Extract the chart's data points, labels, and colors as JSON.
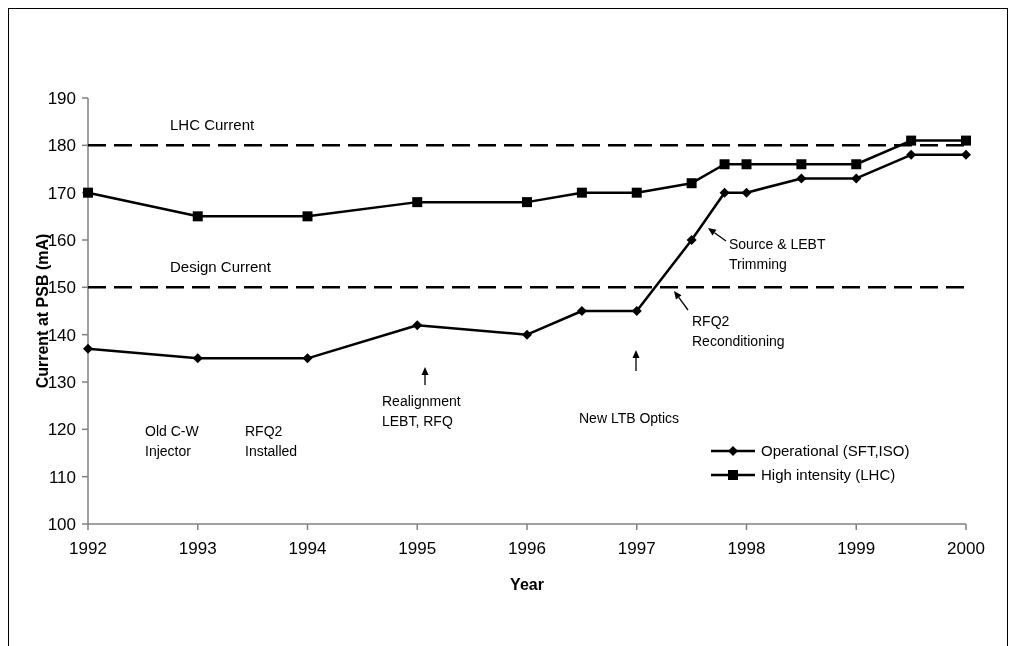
{
  "chart_data": {
    "type": "line",
    "xlabel": "Year",
    "ylabel": "Current at PSB (mA)",
    "xlim": [
      1992,
      2000
    ],
    "xticks": [
      1992,
      1993,
      1994,
      1995,
      1996,
      1997,
      1998,
      1999,
      2000
    ],
    "ylim": [
      100,
      190
    ],
    "yticks": [
      100,
      110,
      120,
      130,
      140,
      150,
      160,
      170,
      180,
      190
    ],
    "grid": false,
    "legend": "bottom right",
    "line_style": "solid",
    "series": [
      {
        "name": "Operational (SFT,ISO)",
        "color": "#000000",
        "marker": "diamond",
        "x": [
          1992,
          1993,
          1994,
          1995,
          1996,
          1996.5,
          1997,
          1997.5,
          1997.8,
          1998,
          1998.5,
          1999,
          1999.5,
          2000
        ],
        "values": [
          137,
          135,
          135,
          142,
          140,
          145,
          145,
          160,
          170,
          170,
          173,
          173,
          178,
          178
        ]
      },
      {
        "name": "High intensity (LHC)",
        "color": "#000000",
        "marker": "square",
        "x": [
          1992,
          1993,
          1994,
          1995,
          1996,
          1996.5,
          1997,
          1997.5,
          1997.8,
          1998,
          1998.5,
          1999,
          1999.5,
          2000
        ],
        "values": [
          170,
          165,
          165,
          168,
          168,
          170,
          170,
          172,
          176,
          176,
          176,
          176,
          181,
          181
        ]
      }
    ],
    "ref_lines": [
      {
        "axis": "y",
        "value": 180,
        "label": "LHC Current",
        "color": "#000000",
        "line_style": "dashed"
      },
      {
        "axis": "y",
        "value": 150,
        "label": "Design Current",
        "color": "#000000",
        "line_style": "dashed"
      }
    ],
    "annotations": [
      "Old C-W Injector",
      "RFQ2 Installed",
      "Realignment LEBT, RFQ",
      "New LTB Optics",
      "Source & LEBT Trimming",
      "RFQ2 Reconditioning"
    ]
  }
}
